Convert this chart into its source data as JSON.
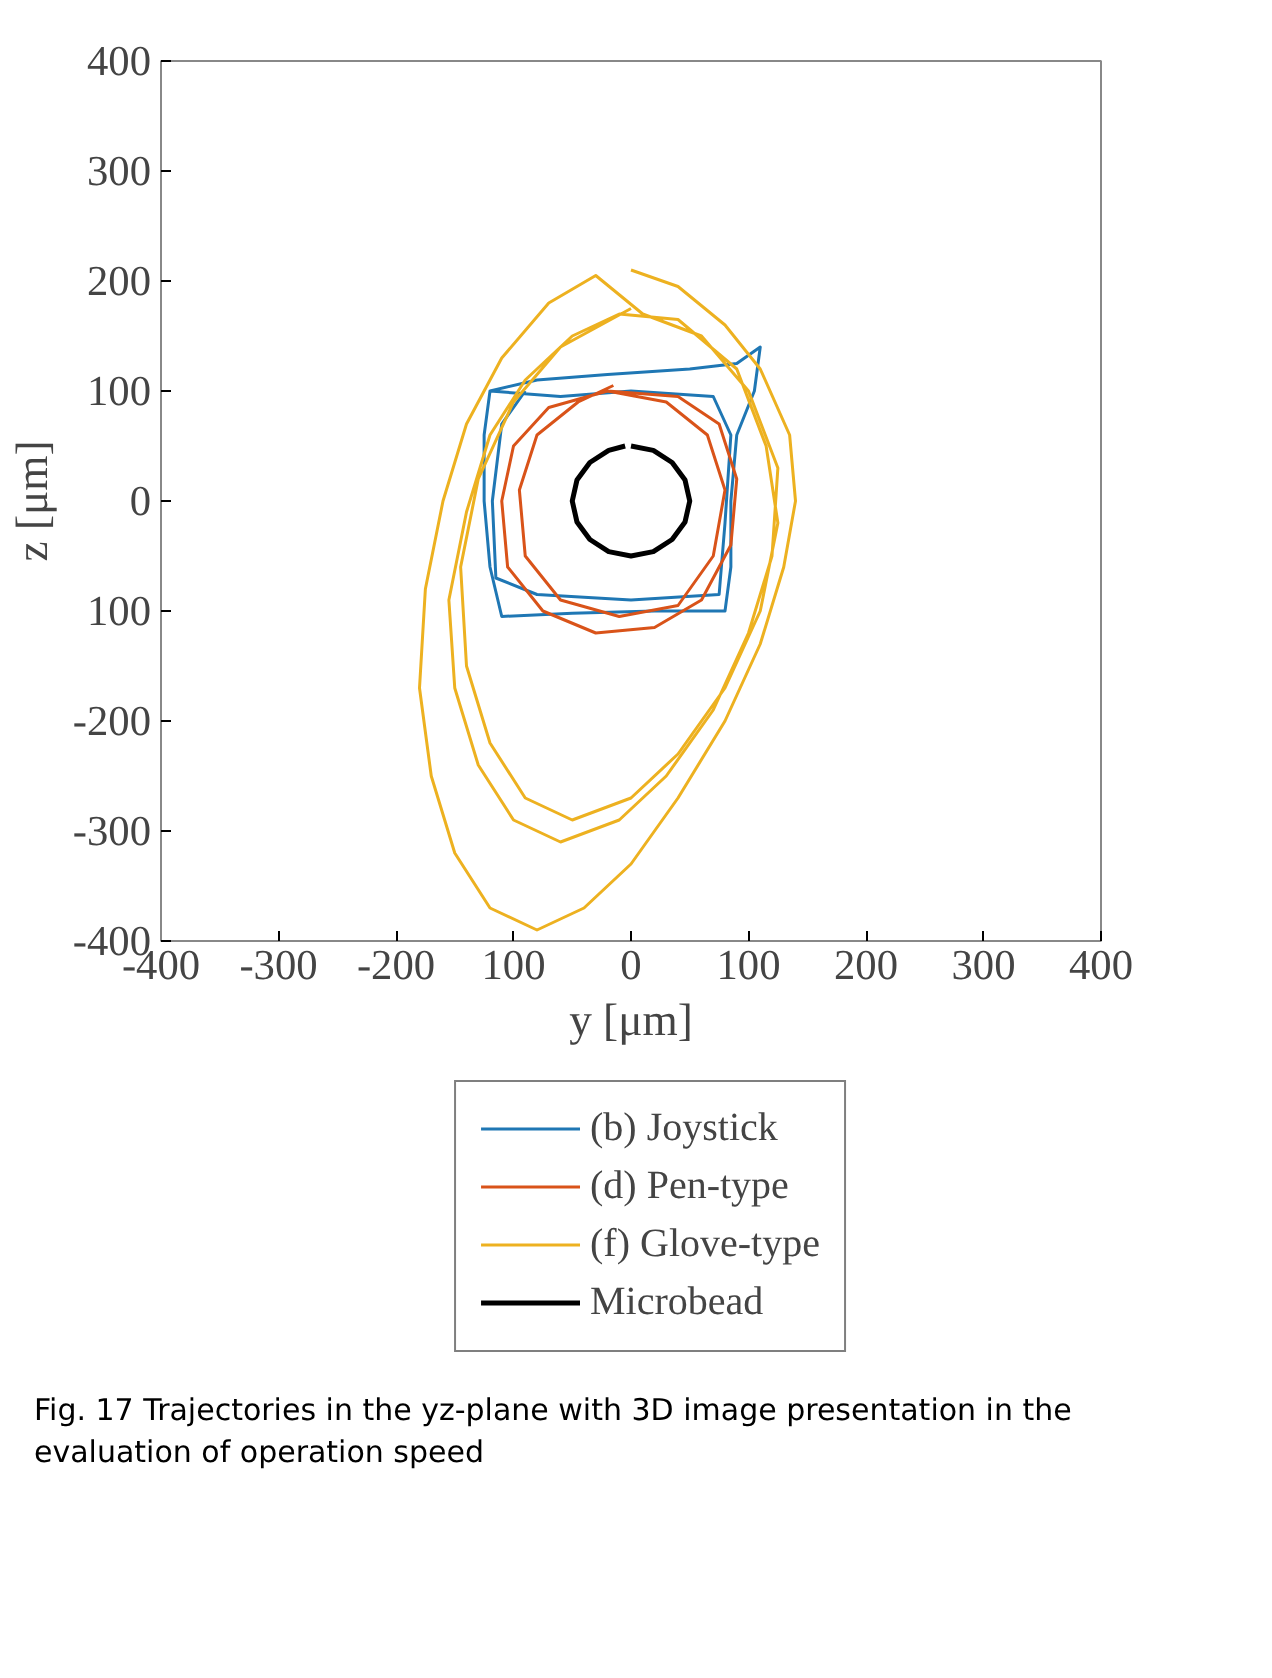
{
  "chart_data": {
    "type": "line",
    "xlabel": "y [μm]",
    "ylabel": "z [μm]",
    "xlim": [
      -400,
      400
    ],
    "ylim": [
      -400,
      400
    ],
    "xticks": [
      -400,
      -300,
      -200,
      {
        "value": -100,
        "label": "100"
      },
      0,
      100,
      200,
      300,
      400
    ],
    "yticks": [
      -400,
      -300,
      -200,
      {
        "value": -100,
        "label": "100"
      },
      0,
      100,
      200,
      300,
      400
    ],
    "grid": false,
    "legend": "bottom",
    "marker": "none",
    "line_style": "solid",
    "series": [
      {
        "name": "(b) Joystick",
        "color": "#1f77b4",
        "x": [
          -120,
          -80,
          -20,
          50,
          90,
          110,
          105,
          90,
          85,
          85,
          80,
          20,
          -50,
          -110,
          -120,
          -125,
          -125,
          -120,
          -60,
          0,
          70,
          85,
          80,
          75,
          0,
          -80,
          -115,
          -118,
          -110,
          -90
        ],
        "values": [
          100,
          110,
          115,
          120,
          125,
          140,
          100,
          60,
          0,
          -60,
          -100,
          -100,
          -102,
          -105,
          -60,
          0,
          60,
          100,
          95,
          100,
          95,
          60,
          -20,
          -85,
          -90,
          -85,
          -70,
          0,
          70,
          100
        ]
      },
      {
        "name": "(d) Pen-type",
        "color": "#d95319",
        "x": [
          -20,
          40,
          75,
          90,
          85,
          60,
          20,
          -30,
          -75,
          -105,
          -110,
          -100,
          -70,
          -20,
          30,
          65,
          80,
          70,
          40,
          -10,
          -60,
          -90,
          -95,
          -80,
          -45,
          -15
        ],
        "values": [
          100,
          95,
          70,
          20,
          -40,
          -90,
          -115,
          -120,
          -100,
          -60,
          0,
          50,
          85,
          100,
          90,
          60,
          10,
          -50,
          -95,
          -105,
          -90,
          -50,
          10,
          60,
          90,
          105
        ]
      },
      {
        "name": "(f) Glove-type",
        "color": "#edb120",
        "x": [
          0,
          40,
          80,
          110,
          135,
          140,
          130,
          110,
          80,
          40,
          0,
          -40,
          -80,
          -120,
          -150,
          -170,
          -180,
          -175,
          -160,
          -140,
          -110,
          -70,
          -30,
          10,
          60,
          100,
          125,
          120,
          100,
          70,
          30,
          -10,
          -60,
          -100,
          -130,
          -150,
          -155,
          -140,
          -120,
          -90,
          -50,
          -10,
          40,
          90,
          115,
          125,
          110,
          80,
          40,
          0,
          -50,
          -90,
          -120,
          -140,
          -145,
          -130,
          -100,
          -60,
          0
        ],
        "values": [
          210,
          195,
          160,
          120,
          60,
          0,
          -60,
          -130,
          -200,
          -270,
          -330,
          -370,
          -390,
          -370,
          -320,
          -250,
          -170,
          -80,
          0,
          70,
          130,
          180,
          205,
          170,
          150,
          100,
          30,
          -50,
          -120,
          -190,
          -250,
          -290,
          -310,
          -290,
          -240,
          -170,
          -90,
          -10,
          60,
          110,
          150,
          170,
          165,
          120,
          50,
          -20,
          -100,
          -170,
          -230,
          -270,
          -290,
          -270,
          -220,
          -150,
          -60,
          20,
          90,
          140,
          175
        ]
      },
      {
        "name": "Microbead",
        "color": "#000000",
        "x": [
          0,
          19,
          35,
          46,
          50,
          46,
          35,
          19,
          0,
          -19,
          -35,
          -46,
          -50,
          -46,
          -35,
          -19,
          -5
        ],
        "values": [
          50,
          46,
          35,
          19,
          0,
          -19,
          -35,
          -46,
          -50,
          -46,
          -35,
          -19,
          0,
          19,
          35,
          46,
          50
        ]
      }
    ],
    "annotations": [
      "Fig. 17 Trajectories in the yz-plane with 3D image presentation in the evaluation of operation speed"
    ]
  }
}
